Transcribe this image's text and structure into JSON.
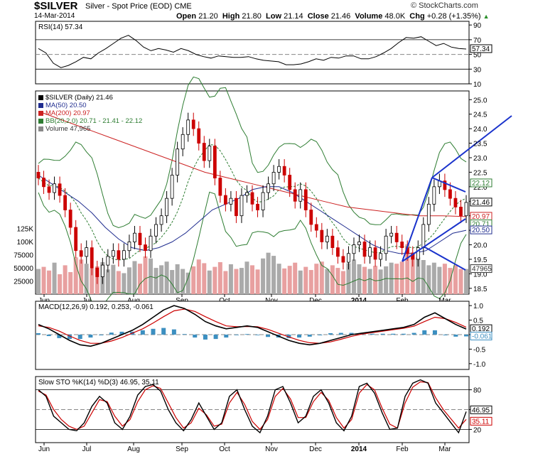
{
  "header": {
    "symbol": "$SILVER",
    "description": "Silver - Spot Price (EOD)",
    "exchange": "CME",
    "date": "14-Mar-2014",
    "open_label": "Open",
    "open": "21.20",
    "high_label": "High",
    "high": "21.80",
    "low_label": "Low",
    "low": "21.14",
    "close_label": "Close",
    "close": "21.46",
    "volume_label": "Volume",
    "volume": "48.0K",
    "chg_label": "Chg",
    "chg": "+0.28 (+1.35%)",
    "chg_arrow": "▲",
    "brand": "© StockCharts.com"
  },
  "colors": {
    "up": "#000000",
    "down": "#cc0000",
    "ma50": "#1f2c8f",
    "ma200": "#cc2222",
    "bb": "#2e7d32",
    "bbmid": "#2e7d32",
    "vol_up": "#aaaaaa",
    "vol_down": "#e8a0a0",
    "trend": "#1a33cc",
    "macd_hist": "#3c8fc0",
    "rsi_fill": "#4a7a4a",
    "rsi_low": "#c03030"
  },
  "chart_data": [
    {
      "type": "line",
      "title": "RSI(14) 57.34",
      "series": [
        {
          "name": "RSI(14)",
          "values": [
            58,
            52,
            38,
            32,
            35,
            40,
            46,
            44,
            52,
            58,
            65,
            72,
            76,
            69,
            60,
            55,
            58,
            56,
            53,
            58,
            55,
            50,
            47,
            45,
            48,
            47,
            46,
            46,
            47,
            44,
            42,
            41,
            40,
            36,
            36,
            37,
            40,
            44,
            42,
            46,
            45,
            48,
            48,
            44,
            44,
            47,
            52,
            58,
            66,
            73,
            72,
            74,
            68,
            62,
            65,
            60,
            58,
            57.34
          ]
        }
      ],
      "ylim": [
        10,
        95
      ],
      "yticks": [
        90,
        70,
        50,
        30,
        10
      ],
      "current": "57.34"
    },
    {
      "type": "candlestick",
      "legend": [
        "$SILVER (Daily) 21.46",
        "MA(50) 20.50",
        "MA(200) 20.97",
        "BB(20,2.0) 20.71 - 21.41 - 22.12",
        "Volume 47,965"
      ],
      "x_labels": [
        "Jun",
        "Jul",
        "Aug",
        "Sep",
        "Oct",
        "Nov",
        "Dec",
        "2014",
        "Feb",
        "Mar"
      ],
      "yticks": [
        25.0,
        24.5,
        24.0,
        23.5,
        23.0,
        22.5,
        22.0,
        21.5,
        21.0,
        20.5,
        20.0,
        19.5,
        19.0,
        18.5
      ],
      "ylim": [
        18.3,
        25.3
      ],
      "vol_ticks": [
        "125K",
        "100K",
        "75000",
        "50000",
        "25000"
      ],
      "close": [
        22.3,
        22.0,
        21.8,
        22.1,
        21.7,
        21.2,
        20.6,
        19.8,
        19.6,
        19.9,
        19.2,
        18.9,
        19.3,
        19.6,
        19.8,
        19.5,
        19.8,
        20.1,
        20.4,
        20.0,
        19.8,
        20.3,
        20.7,
        21.0,
        21.6,
        22.4,
        23.3,
        23.8,
        24.3,
        24.0,
        23.5,
        22.9,
        23.4,
        22.3,
        21.7,
        21.4,
        21.6,
        21.0,
        21.7,
        21.8,
        21.4,
        21.2,
        21.8,
        22.1,
        22.5,
        22.7,
        22.4,
        21.9,
        21.5,
        21.9,
        21.2,
        20.7,
        20.5,
        20.1,
        20.3,
        19.9,
        19.6,
        19.4,
        19.7,
        20.0,
        20.1,
        19.6,
        19.9,
        19.5,
        19.7,
        20.3,
        20.4,
        20.1,
        19.9,
        19.7,
        19.5,
        19.9,
        20.7,
        21.4,
        22.0,
        22.2,
        21.9,
        21.6,
        21.3,
        21.0,
        21.46
      ],
      "high": 25.1,
      "low": 18.5,
      "ma50": [
        22.4,
        22.1,
        21.8,
        21.5,
        21.1,
        20.6,
        20.2,
        19.9,
        19.8,
        19.9,
        20.1,
        20.4,
        20.8,
        21.2,
        21.4,
        21.6,
        21.9,
        22.0,
        22.0,
        21.8,
        21.5,
        21.2,
        20.9,
        20.6,
        20.3,
        20.0,
        19.8,
        19.7,
        19.7,
        19.8,
        20.1,
        20.4,
        20.5
      ],
      "ma200": [
        24.6,
        24.3,
        24.0,
        23.7,
        23.4,
        23.1,
        22.8,
        22.5,
        22.3,
        22.1,
        21.9,
        21.7,
        21.5,
        21.3,
        21.2,
        21.1,
        21.0,
        21.0,
        20.97
      ],
      "volume_k": [
        48,
        52,
        45,
        60,
        38,
        55,
        42,
        70,
        66,
        58,
        49,
        53,
        61,
        47,
        56,
        44,
        40,
        51,
        63,
        58,
        72,
        68,
        50,
        55,
        62,
        46,
        57,
        48,
        41,
        53,
        66,
        59,
        45,
        52,
        61,
        44,
        57,
        48,
        50,
        62,
        55,
        47,
        68,
        79,
        73,
        58,
        49,
        54,
        60,
        45,
        52,
        46,
        58,
        62,
        48,
        55,
        50,
        44,
        59,
        66,
        57,
        52,
        48,
        54,
        47,
        53,
        60,
        58,
        62,
        95,
        80,
        70,
        65,
        55,
        60,
        52,
        58,
        50,
        55,
        48,
        47.965
      ]
    },
    {
      "type": "line",
      "title": "MACD(12,26,9) 0.192, 0.253, -0.061",
      "series": [
        {
          "name": "MACD(12,26,9)",
          "values": [
            0.35,
            0.2,
            0.0,
            -0.2,
            -0.35,
            -0.4,
            -0.3,
            -0.15,
            0.0,
            0.15,
            0.35,
            0.6,
            0.85,
            1.0,
            0.9,
            0.7,
            0.45,
            0.3,
            0.2,
            0.25,
            0.3,
            0.25,
            0.1,
            -0.05,
            -0.2,
            -0.3,
            -0.35,
            -0.3,
            -0.2,
            -0.1,
            0.0,
            0.05,
            0.1,
            0.15,
            0.2,
            0.25,
            0.35,
            0.6,
            0.75,
            0.55,
            0.35,
            0.192
          ]
        },
        {
          "name": "Signal",
          "values": [
            0.3,
            0.25,
            0.12,
            -0.05,
            -0.2,
            -0.3,
            -0.3,
            -0.22,
            -0.1,
            0.05,
            0.2,
            0.4,
            0.62,
            0.82,
            0.88,
            0.8,
            0.62,
            0.45,
            0.3,
            0.27,
            0.28,
            0.27,
            0.18,
            0.05,
            -0.08,
            -0.2,
            -0.28,
            -0.3,
            -0.25,
            -0.16,
            -0.06,
            0.02,
            0.07,
            0.12,
            0.17,
            0.22,
            0.29,
            0.45,
            0.6,
            0.55,
            0.42,
            0.253
          ]
        },
        {
          "name": "Histogram",
          "values": [
            0.05,
            -0.05,
            -0.12,
            -0.15,
            -0.15,
            -0.1,
            0.0,
            0.07,
            0.1,
            0.1,
            0.15,
            0.2,
            0.23,
            0.18,
            0.02,
            -0.1,
            -0.17,
            -0.15,
            -0.1,
            -0.02,
            0.02,
            -0.02,
            -0.08,
            -0.1,
            -0.12,
            -0.1,
            -0.07,
            0.0,
            0.05,
            0.06,
            0.06,
            0.03,
            0.03,
            0.03,
            0.03,
            0.03,
            0.06,
            0.15,
            0.15,
            0.0,
            -0.07,
            -0.061
          ]
        }
      ],
      "yticks": [
        1.0,
        0.5,
        0.0,
        -0.5,
        -1.0
      ],
      "ylim": [
        -1.2,
        1.15
      ],
      "current": [
        "0.192",
        "-0.061"
      ]
    },
    {
      "type": "line",
      "title": "Slow STO %K(14) %D(3) 46.95, 35.11",
      "series": [
        {
          "name": "%K(14)",
          "values": [
            80,
            70,
            40,
            30,
            20,
            18,
            30,
            55,
            70,
            60,
            30,
            20,
            40,
            72,
            85,
            88,
            78,
            50,
            30,
            18,
            35,
            60,
            40,
            20,
            30,
            70,
            80,
            50,
            25,
            15,
            40,
            80,
            85,
            60,
            30,
            40,
            70,
            80,
            60,
            30,
            18,
            40,
            85,
            90,
            75,
            45,
            20,
            22,
            70,
            90,
            95,
            90,
            60,
            45,
            30,
            15,
            46.95
          ]
        },
        {
          "name": "%D(3)",
          "values": [
            78,
            72,
            50,
            35,
            25,
            20,
            25,
            45,
            65,
            62,
            40,
            25,
            35,
            62,
            80,
            86,
            82,
            60,
            38,
            22,
            30,
            52,
            42,
            25,
            28,
            60,
            76,
            58,
            32,
            20,
            35,
            70,
            82,
            66,
            38,
            38,
            62,
            76,
            64,
            38,
            22,
            35,
            75,
            88,
            80,
            52,
            28,
            22,
            60,
            84,
            92,
            91,
            68,
            50,
            36,
            22,
            35.11
          ]
        }
      ],
      "yticks": [
        80,
        50,
        20
      ],
      "ylim": [
        0,
        100
      ],
      "current": [
        "46.95",
        "35.11"
      ]
    }
  ]
}
